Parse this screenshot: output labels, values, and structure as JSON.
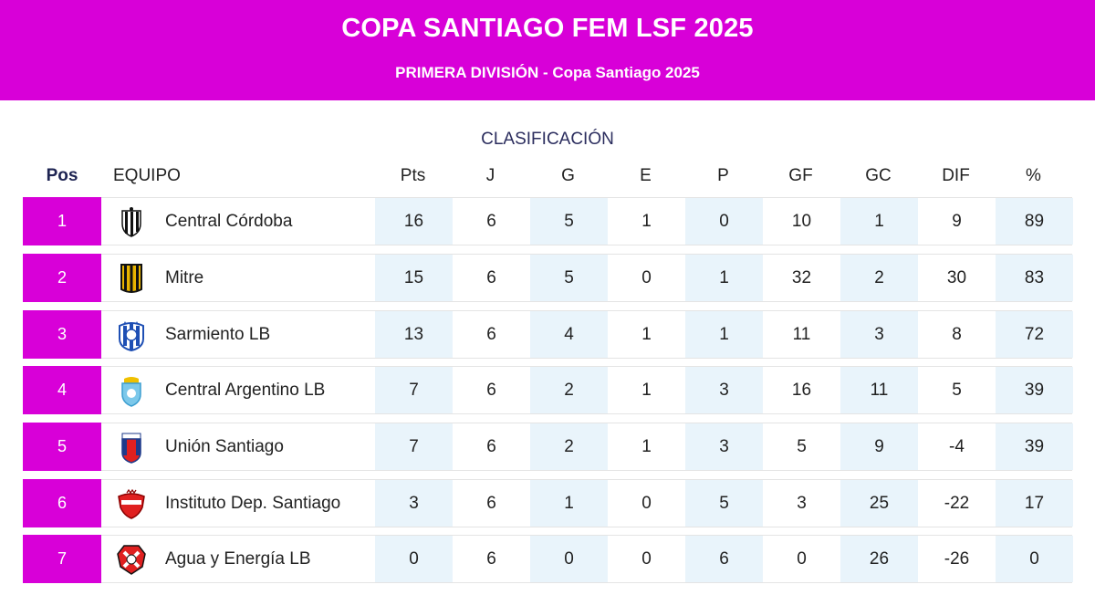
{
  "header": {
    "title": "COPA SANTIAGO FEM LSF 2025",
    "subtitle": "PRIMERA DIVISIÓN - Copa Santiago 2025"
  },
  "section_title": "CLASIFICACIÓN",
  "columns": {
    "pos": "Pos",
    "team": "EQUIPO",
    "pts": "Pts",
    "j": "J",
    "g": "G",
    "e": "E",
    "p": "P",
    "gf": "GF",
    "gc": "GC",
    "dif": "DIF",
    "pct": "%"
  },
  "colors": {
    "accent": "#d800d8",
    "alt_cell": "#e9f4fb",
    "heading": "#2b2d5e"
  },
  "rows": [
    {
      "pos": "1",
      "team": "Central Córdoba",
      "crest": "central-cordoba-crest",
      "pts": "16",
      "j": "6",
      "g": "5",
      "e": "1",
      "p": "0",
      "gf": "10",
      "gc": "1",
      "dif": "9",
      "pct": "89"
    },
    {
      "pos": "2",
      "team": "Mitre",
      "crest": "mitre-crest",
      "pts": "15",
      "j": "6",
      "g": "5",
      "e": "0",
      "p": "1",
      "gf": "32",
      "gc": "2",
      "dif": "30",
      "pct": "83"
    },
    {
      "pos": "3",
      "team": "Sarmiento LB",
      "crest": "sarmiento-lb-crest",
      "pts": "13",
      "j": "6",
      "g": "4",
      "e": "1",
      "p": "1",
      "gf": "11",
      "gc": "3",
      "dif": "8",
      "pct": "72"
    },
    {
      "pos": "4",
      "team": "Central Argentino LB",
      "crest": "central-argentino-lb-crest",
      "pts": "7",
      "j": "6",
      "g": "2",
      "e": "1",
      "p": "3",
      "gf": "16",
      "gc": "11",
      "dif": "5",
      "pct": "39"
    },
    {
      "pos": "5",
      "team": "Unión Santiago",
      "crest": "union-santiago-crest",
      "pts": "7",
      "j": "6",
      "g": "2",
      "e": "1",
      "p": "3",
      "gf": "5",
      "gc": "9",
      "dif": "-4",
      "pct": "39"
    },
    {
      "pos": "6",
      "team": "Instituto Dep. Santiago",
      "crest": "instituto-dep-santiago-crest",
      "pts": "3",
      "j": "6",
      "g": "1",
      "e": "0",
      "p": "5",
      "gf": "3",
      "gc": "25",
      "dif": "-22",
      "pct": "17"
    },
    {
      "pos": "7",
      "team": "Agua y Energía LB",
      "crest": "agua-y-energia-lb-crest",
      "pts": "0",
      "j": "6",
      "g": "0",
      "e": "0",
      "p": "6",
      "gf": "0",
      "gc": "26",
      "dif": "-26",
      "pct": "0"
    }
  ]
}
